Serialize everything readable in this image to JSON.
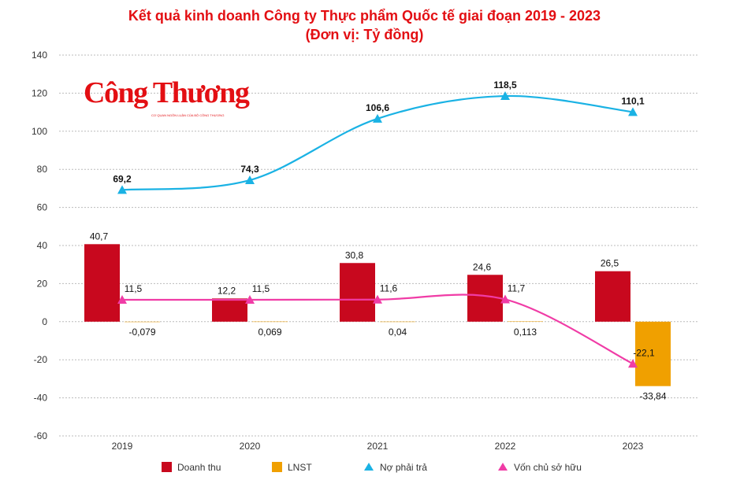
{
  "logo": {
    "text": "Công Thương",
    "tagline": "CƠ QUAN NGÔN LUẬN CỦA BỘ CÔNG THƯƠNG"
  },
  "chart_data": {
    "type": "bar+line",
    "title": "Kết quả kinh doanh Công ty Thực phẩm Quốc tế giai đoạn 2019 - 2023",
    "subtitle": "(Đơn vị: Tỷ đồng)",
    "categories": [
      "2019",
      "2020",
      "2021",
      "2022",
      "2023"
    ],
    "ylim": [
      -60,
      140
    ],
    "yticks": [
      140,
      120,
      100,
      80,
      60,
      40,
      20,
      0,
      -20,
      -40,
      -60
    ],
    "grid": true,
    "legend_position": "bottom",
    "series": [
      {
        "name": "Doanh thu",
        "type": "bar",
        "color": "#c8081e",
        "values": [
          40.7,
          12.2,
          30.8,
          24.6,
          26.5
        ],
        "labels": [
          "40,7",
          "12,2",
          "30,8",
          "24,6",
          "26,5"
        ]
      },
      {
        "name": "LNST",
        "type": "bar",
        "color": "#f0a000",
        "values": [
          -0.079,
          0.069,
          0.04,
          0.113,
          -33.84
        ],
        "labels": [
          "-0,079",
          "0,069",
          "0,04",
          "0,113",
          "-33,84"
        ]
      },
      {
        "name": "Nợ phải trả",
        "type": "line",
        "color": "#1ab2e4",
        "values": [
          69.2,
          74.3,
          106.6,
          118.5,
          110.1
        ],
        "labels": [
          "69,2",
          "74,3",
          "106,6",
          "118,5",
          "110,1"
        ]
      },
      {
        "name": "Vốn chủ sở hữu",
        "type": "line",
        "color": "#f03ca6",
        "values": [
          11.5,
          11.5,
          11.6,
          11.7,
          -22.1
        ],
        "labels": [
          "11,5",
          "11,5",
          "11,6",
          "11,7",
          "-22,1"
        ]
      }
    ]
  }
}
